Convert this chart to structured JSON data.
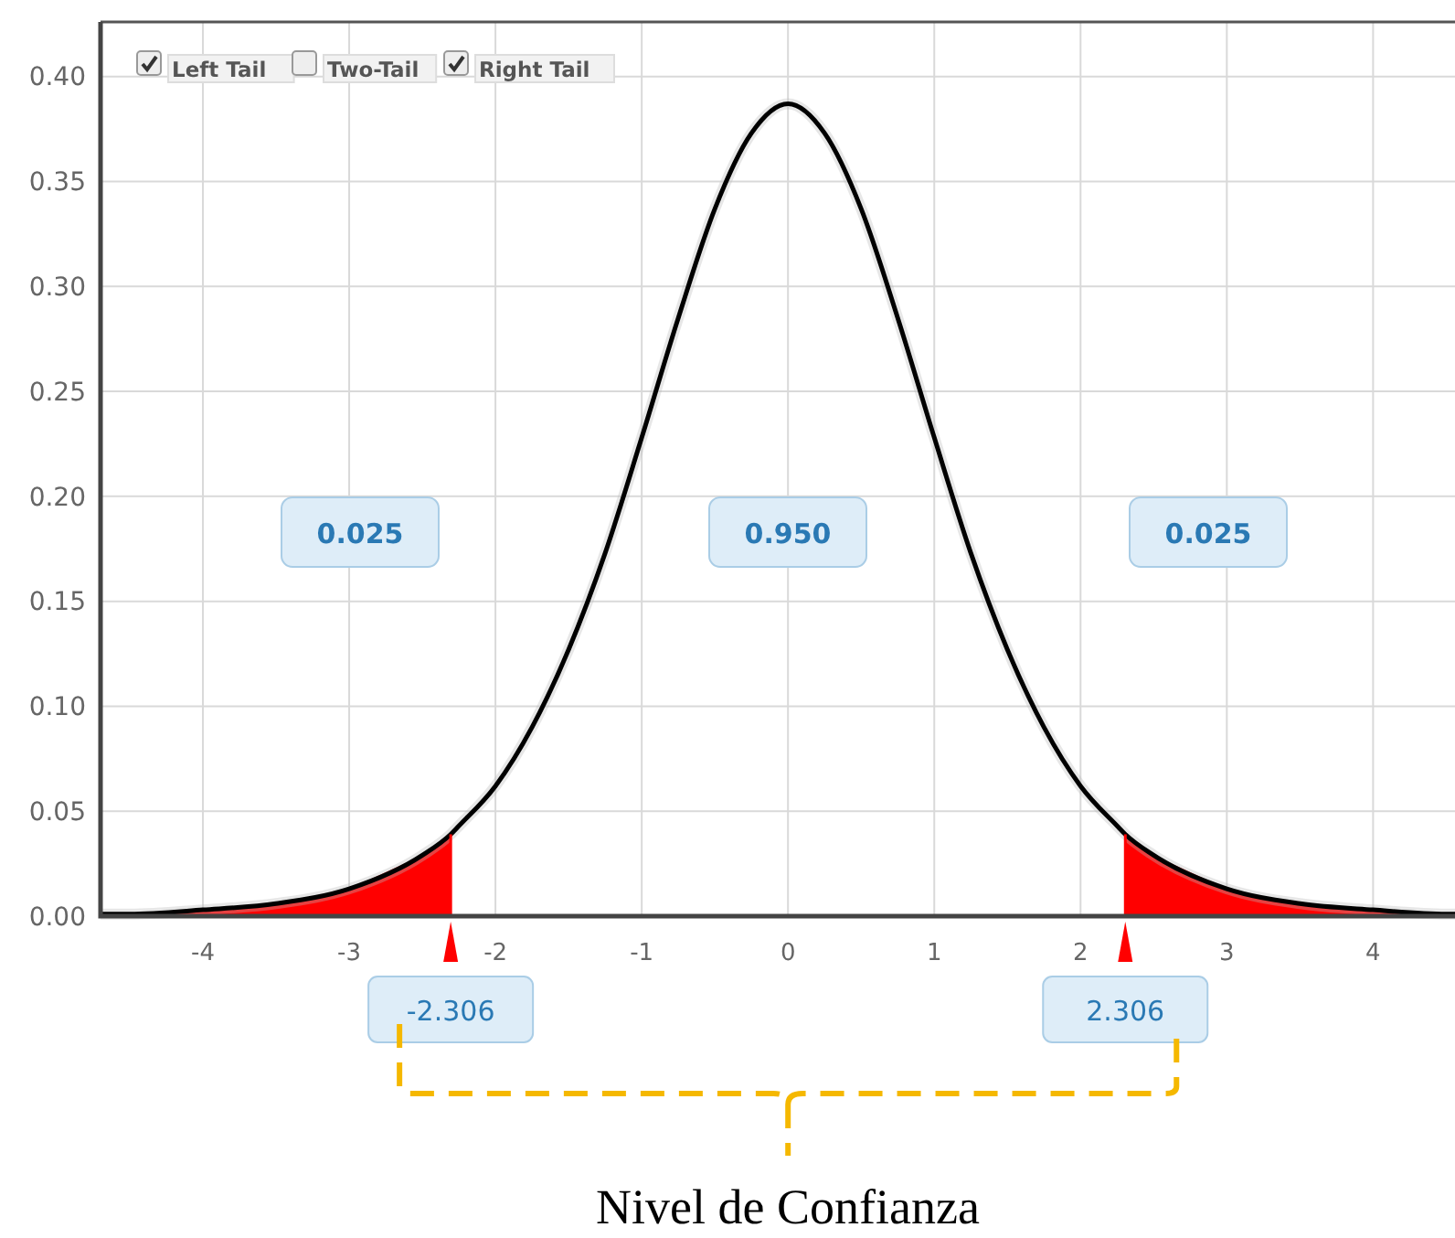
{
  "chart_data": {
    "type": "line",
    "xlim": [
      -4.7,
      4.56
    ],
    "ylim": [
      0,
      0.426
    ],
    "xticks": [
      -4,
      -3,
      -2,
      -1,
      0,
      1,
      2,
      3,
      4
    ],
    "yticks": [
      {
        "value": 0,
        "label": "0.00"
      },
      {
        "value": 0.05,
        "label": "0.05"
      },
      {
        "value": 0.1,
        "label": "0.10"
      },
      {
        "value": 0.15,
        "label": "0.15"
      },
      {
        "value": 0.2,
        "label": "0.20"
      },
      {
        "value": 0.25,
        "label": "0.25"
      },
      {
        "value": 0.3,
        "label": "0.30"
      },
      {
        "value": 0.35,
        "label": "0.35"
      },
      {
        "value": 0.4,
        "label": "0.40"
      }
    ],
    "grid": true,
    "series": [
      {
        "type": "area",
        "color": "#ff0000",
        "x": [
          -4.7,
          -4.5,
          -4,
          -3.5,
          -3,
          -2.5,
          -2.306
        ],
        "values": [
          0.001,
          0.001,
          0.003,
          0.006,
          0.013,
          0.029,
          0.039
        ]
      },
      {
        "type": "area",
        "color": "#ff0000",
        "x": [
          2.306,
          2.5,
          3,
          3.5,
          4,
          4.5,
          4.56
        ],
        "values": [
          0.039,
          0.029,
          0.013,
          0.006,
          0.003,
          0.001,
          0.001
        ]
      },
      {
        "color": "#000000",
        "x": [
          -4.7,
          -4.5,
          -4,
          -3.5,
          -3,
          -2.5,
          -2.306,
          -2.25,
          -2,
          -1.75,
          -1.5,
          -1.25,
          -1,
          -0.75,
          -0.5,
          -0.25,
          0,
          0.25,
          0.5,
          0.75,
          1,
          1.25,
          1.5,
          1.75,
          2,
          2.25,
          2.306,
          2.5,
          3,
          3.5,
          4,
          4.5,
          4.56
        ],
        "values": [
          0.001,
          0.001,
          0.003,
          0.006,
          0.013,
          0.029,
          0.039,
          0.043,
          0.062,
          0.09,
          0.127,
          0.173,
          0.228,
          0.285,
          0.337,
          0.373,
          0.387,
          0.373,
          0.337,
          0.285,
          0.228,
          0.173,
          0.127,
          0.09,
          0.062,
          0.043,
          0.039,
          0.029,
          0.013,
          0.006,
          0.003,
          0.001,
          0.001
        ]
      }
    ],
    "ref_lines": [
      {
        "axis": "x",
        "value": -2.306,
        "label": "-2.306",
        "color": "#ff0000"
      },
      {
        "axis": "x",
        "value": 2.306,
        "label": "2.306",
        "color": "#ff0000"
      }
    ],
    "annotations": [
      "Left Tail",
      "Two-Tail",
      "Right Tail",
      "0.025",
      "0.950",
      "0.025",
      "Nivel de Confianza"
    ]
  }
}
